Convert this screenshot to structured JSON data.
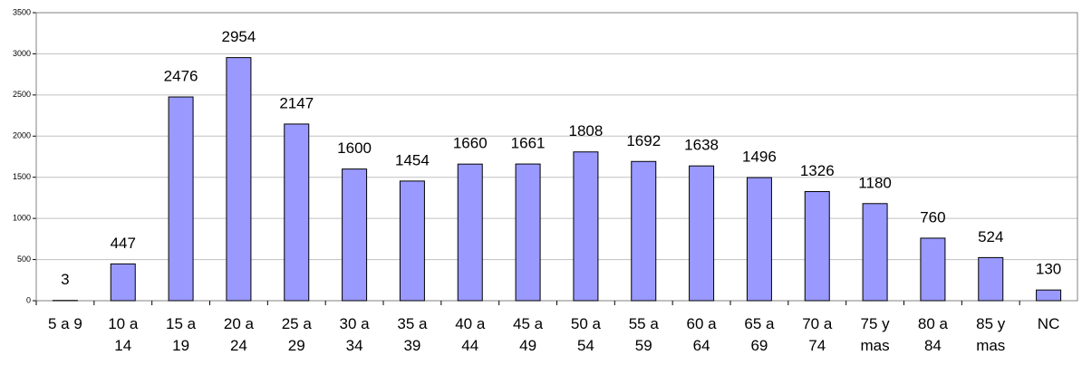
{
  "chart_data": {
    "type": "bar",
    "categories": [
      "5 a 9",
      "10 a 14",
      "15 a 19",
      "20 a 24",
      "25 a 29",
      "30 a 34",
      "35 a 39",
      "40 a 44",
      "45 a 49",
      "50 a 54",
      "55 a 59",
      "60 a 64",
      "65 a 69",
      "70 a 74",
      "75 y mas",
      "80 a 84",
      "85 y mas",
      "NC"
    ],
    "values": [
      3,
      447,
      2476,
      2954,
      2147,
      1600,
      1454,
      1660,
      1661,
      1808,
      1692,
      1638,
      1496,
      1326,
      1180,
      760,
      524,
      130
    ],
    "color": "#9999ff",
    "ylim": [
      0,
      3500
    ],
    "yticks": [
      0,
      500,
      1000,
      1500,
      2000,
      2500,
      3000,
      3500
    ],
    "grid": true
  }
}
